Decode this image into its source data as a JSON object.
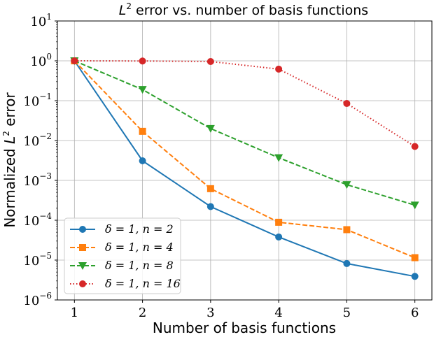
{
  "chart_data": {
    "type": "line",
    "title_prefix": "L",
    "title_sup": "2",
    "title_suffix": " error vs. number of basis functions",
    "xlabel": "Number of basis functions",
    "ylabel_prefix": "Normalized ",
    "ylabel_var": "L",
    "ylabel_sup": "2",
    "ylabel_suffix": " error",
    "x_scale": "linear",
    "y_scale": "log",
    "xlim": [
      0.75,
      6.25
    ],
    "ylim_exponent": [
      -6,
      1
    ],
    "x_ticks": [
      "1",
      "2",
      "3",
      "4",
      "5",
      "6"
    ],
    "y_ticks": [
      {
        "base": "10",
        "exp": "1"
      },
      {
        "base": "10",
        "exp": "0"
      },
      {
        "base": "10",
        "exp": "−1"
      },
      {
        "base": "10",
        "exp": "−2"
      },
      {
        "base": "10",
        "exp": "−3"
      },
      {
        "base": "10",
        "exp": "−4"
      },
      {
        "base": "10",
        "exp": "−5"
      },
      {
        "base": "10",
        "exp": "−6"
      }
    ],
    "grid": true,
    "legend_position": "lower-left",
    "x": [
      1,
      2,
      3,
      4,
      5,
      6
    ],
    "series": [
      {
        "name": "δ = 1, n = 2",
        "color": "#1f77b4",
        "dash": "solid",
        "marker": "circle",
        "values": [
          1.0,
          0.0031,
          0.00022,
          3.8e-05,
          8.2e-06,
          3.9e-06
        ]
      },
      {
        "name": "δ = 1, n = 4",
        "color": "#ff7f0e",
        "dash": "dashed",
        "marker": "square",
        "values": [
          1.0,
          0.017,
          0.00062,
          8.9e-05,
          5.8e-05,
          1.15e-05
        ]
      },
      {
        "name": "δ = 1, n = 8",
        "color": "#2ca02c",
        "dash": "dashed",
        "marker": "triangle-down",
        "values": [
          1.0,
          0.19,
          0.02,
          0.0037,
          0.00078,
          0.00024
        ]
      },
      {
        "name": "δ = 1, n = 16",
        "color": "#d62728",
        "dash": "dotted",
        "marker": "circle",
        "values": [
          1.0,
          0.99,
          0.96,
          0.62,
          0.085,
          0.0071
        ]
      }
    ]
  }
}
